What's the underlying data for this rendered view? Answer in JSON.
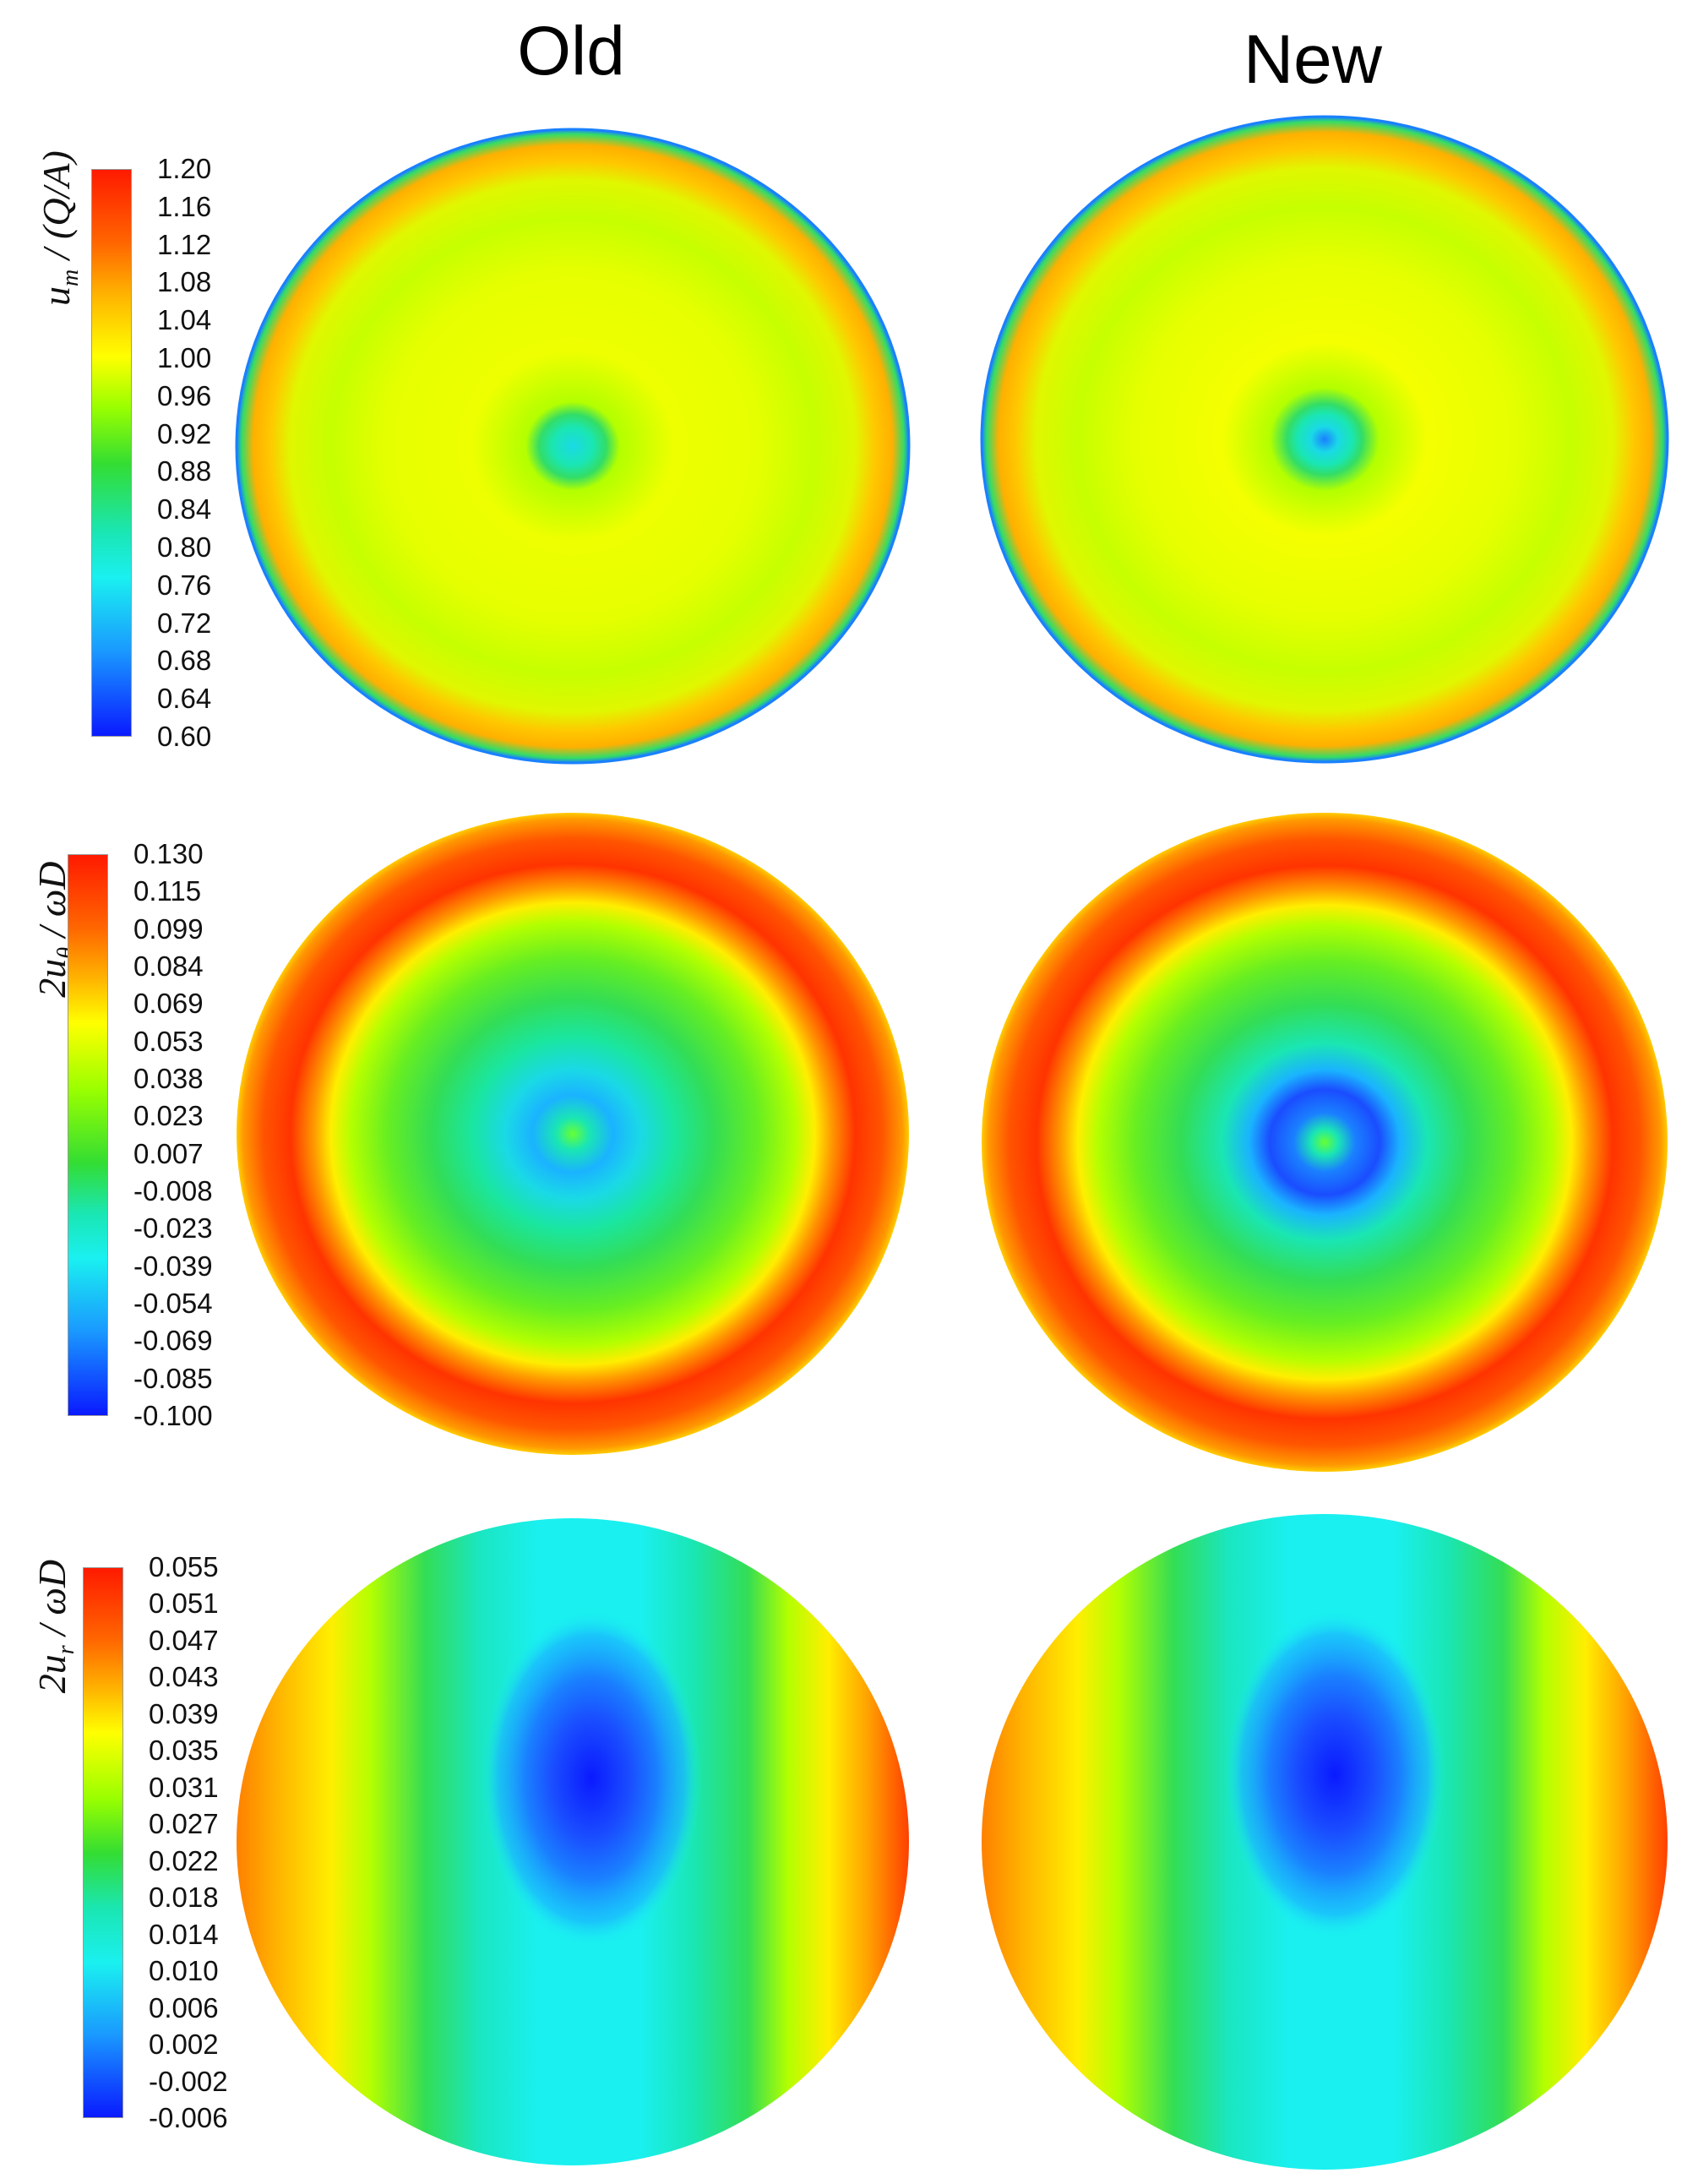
{
  "columns": {
    "left": "Old",
    "right": "New"
  },
  "rows": [
    {
      "label_main": "u",
      "label_sub": "m",
      "label_rest": " / (Q/A)",
      "ticks": [
        "1.20",
        "1.16",
        "1.12",
        "1.08",
        "1.04",
        "1.00",
        "0.96",
        "0.92",
        "0.88",
        "0.84",
        "0.80",
        "0.76",
        "0.72",
        "0.68",
        "0.64",
        "0.60"
      ]
    },
    {
      "label_main": "2u",
      "label_sub": "θ",
      "label_rest": " / ωD",
      "ticks": [
        "0.130",
        "0.115",
        "0.099",
        "0.084",
        "0.069",
        "0.053",
        "0.038",
        "0.023",
        "0.007",
        "-0.008",
        "-0.023",
        "-0.039",
        "-0.054",
        "-0.069",
        "-0.085",
        "-0.100"
      ]
    },
    {
      "label_main": "2u",
      "label_sub": "r",
      "label_rest": " / ωD",
      "ticks": [
        "0.055",
        "0.051",
        "0.047",
        "0.043",
        "0.039",
        "0.035",
        "0.031",
        "0.027",
        "0.022",
        "0.018",
        "0.014",
        "0.010",
        "0.006",
        "0.002",
        "-0.002",
        "-0.006"
      ]
    }
  ],
  "colormap": [
    "#ff1a00",
    "#ff4d00",
    "#ff8000",
    "#ffb300",
    "#ffe600",
    "#e6ff00",
    "#99ff00",
    "#33e633",
    "#1ad97a",
    "#1ae6b3",
    "#1af0f0",
    "#1ab3ff",
    "#1a80ff",
    "#1a4dff",
    "#0a1aff"
  ]
}
